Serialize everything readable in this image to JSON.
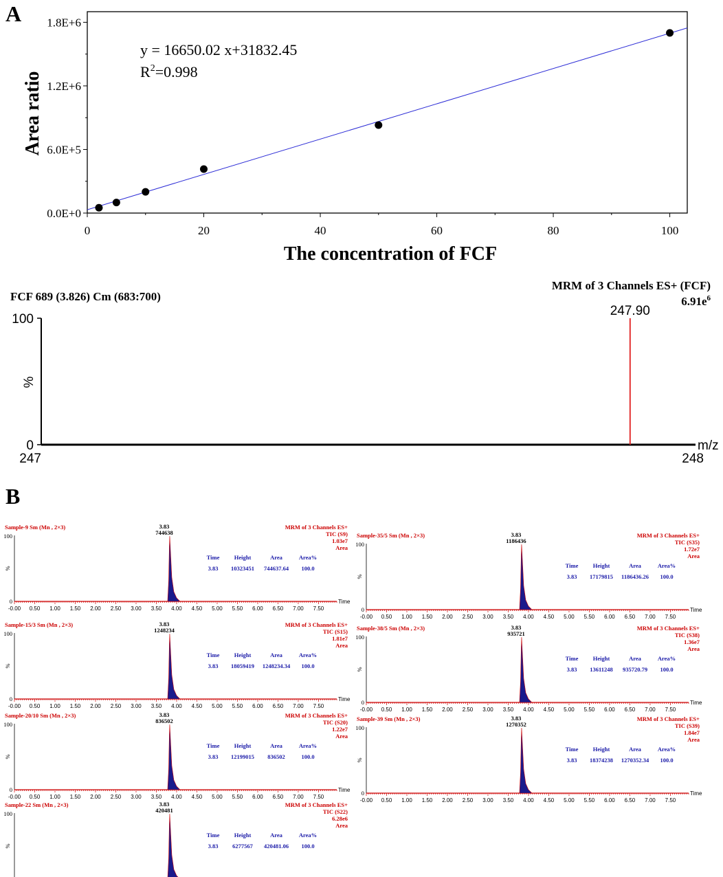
{
  "panel_a": {
    "label": "A"
  },
  "panel_b": {
    "label": "B"
  },
  "chart_data": [
    {
      "type": "scatter",
      "title": "",
      "xlabel": "The concentration of FCF",
      "ylabel": "Area ratio",
      "xlim": [
        0,
        103
      ],
      "ylim": [
        0,
        1900000
      ],
      "xticks": [
        0,
        20,
        40,
        60,
        80,
        100
      ],
      "yticks": [
        0,
        600000,
        1200000,
        1800000
      ],
      "ytick_labels": [
        "0.0E+0",
        "6.0E+5",
        "1.2E+6",
        "1.8E+6"
      ],
      "x": [
        2,
        5,
        10,
        20,
        50,
        100
      ],
      "y": [
        50000,
        100000,
        200000,
        415000,
        830000,
        1700000
      ],
      "fit_line": {
        "slope": 16650.02,
        "intercept": 31832.45,
        "color": "#2b2bd6"
      },
      "annotations": [
        "y = 16650.02 x+31832.45",
        "R",
        "2",
        "=0.998"
      ],
      "grid": false,
      "point_color": "#000000"
    },
    {
      "type": "bar",
      "title": "FCF 689 (3.826) Cm (683:700)",
      "title_right": "MRM of 3 Channels ES+ (FCF)",
      "intensity_base": "6.91e",
      "intensity_exp": "6",
      "xlabel": "m/z",
      "ylabel": "%",
      "xlim": [
        247,
        248
      ],
      "ylim": [
        0,
        100
      ],
      "xtick_labels": [
        "247",
        "248"
      ],
      "ytick_labels": [
        "0",
        "100"
      ],
      "x": [
        247.9
      ],
      "values": [
        100
      ],
      "peak_label": "247.90",
      "color": "#e02020"
    }
  ],
  "chromatograms": [
    {
      "title": "Sample-9 Sm (Mn , 2×3)",
      "mrm": "MRM of 3 Channels ES+",
      "tic": "TIC (S9)",
      "intensity": "1.03e7",
      "area_word": "Area",
      "peak_time": "3.83",
      "peak_area": "744638",
      "table": {
        "headers": [
          "Time",
          "Height",
          "Area",
          "Area%"
        ],
        "values": [
          "3.83",
          "10323451",
          "744637.64",
          "100.0"
        ]
      }
    },
    {
      "title": "Sample-15/3 Sm (Mn , 2×3)",
      "mrm": "MRM of 3 Channels ES+",
      "tic": "TIC (S15)",
      "intensity": "1.81e7",
      "area_word": "Area",
      "peak_time": "3.83",
      "peak_area": "1248234",
      "table": {
        "headers": [
          "Time",
          "Height",
          "Area",
          "Area%"
        ],
        "values": [
          "3.83",
          "18059419",
          "1248234.34",
          "100.0"
        ]
      }
    },
    {
      "title": "Sample-20/10 Sm (Mn , 2×3)",
      "mrm": "MRM of 3 Channels ES+",
      "tic": "TIC (S20)",
      "intensity": "1.22e7",
      "area_word": "Area",
      "peak_time": "3.83",
      "peak_area": "836502",
      "table": {
        "headers": [
          "Time",
          "Height",
          "Area",
          "Area%"
        ],
        "values": [
          "3.83",
          "12199015",
          "836502",
          "100.0"
        ]
      }
    },
    {
      "title": "Sample-22 Sm (Mn , 2×3)",
      "mrm": "MRM of 3 Channels ES+",
      "tic": "TIC (S22)",
      "intensity": "6.28e6",
      "area_word": "Area",
      "peak_time": "3.83",
      "peak_area": "420481",
      "table": {
        "headers": [
          "Time",
          "Height",
          "Area",
          "Area%"
        ],
        "values": [
          "3.83",
          "6277567",
          "420481.06",
          "100.0"
        ]
      }
    },
    {
      "title": "Sample-35/5 Sm (Mn , 2×3)",
      "mrm": "MRM of 3 Channels ES+",
      "tic": "TIC (S35)",
      "intensity": "1.72e7",
      "area_word": "Area",
      "peak_time": "3.83",
      "peak_area": "1186436",
      "table": {
        "headers": [
          "Time",
          "Height",
          "Area",
          "Area%"
        ],
        "values": [
          "3.83",
          "17179815",
          "1186436.26",
          "100.0"
        ]
      }
    },
    {
      "title": "Sample-38/5 Sm (Mn , 2×3)",
      "mrm": "MRM of 3 Channels ES+",
      "tic": "TIC (S38)",
      "intensity": "1.36e7",
      "area_word": "Area",
      "peak_time": "3.83",
      "peak_area": "935721",
      "table": {
        "headers": [
          "Time",
          "Height",
          "Area",
          "Area%"
        ],
        "values": [
          "3.83",
          "13611248",
          "935720.79",
          "100.0"
        ]
      }
    },
    {
      "title": "Sample-39 Sm (Mn , 2×3)",
      "mrm": "MRM of 3 Channels ES+",
      "tic": "TIC (S39)",
      "intensity": "1.84e7",
      "area_word": "Area",
      "peak_time": "3.83",
      "peak_area": "1270352",
      "table": {
        "headers": [
          "Time",
          "Height",
          "Area",
          "Area%"
        ],
        "values": [
          "3.83",
          "18374238",
          "1270352.34",
          "100.0"
        ]
      }
    }
  ],
  "chromatogram_axis": {
    "xticks": [
      "-0.00",
      "0.50",
      "1.00",
      "1.50",
      "2.00",
      "2.50",
      "3.00",
      "3.50",
      "4.00",
      "4.50",
      "5.00",
      "5.50",
      "6.00",
      "6.50",
      "7.00",
      "7.50"
    ],
    "xlabel": "Time",
    "y_top": "100",
    "y_mid": "%",
    "y_bottom": "0",
    "xlim": [
      0,
      7.95
    ],
    "peak_rt": 3.83,
    "peak_color": "#1a1a8c",
    "trace_color": "#cc0000",
    "title_color": "#cc0000",
    "table_color": "#1a1aa8"
  }
}
